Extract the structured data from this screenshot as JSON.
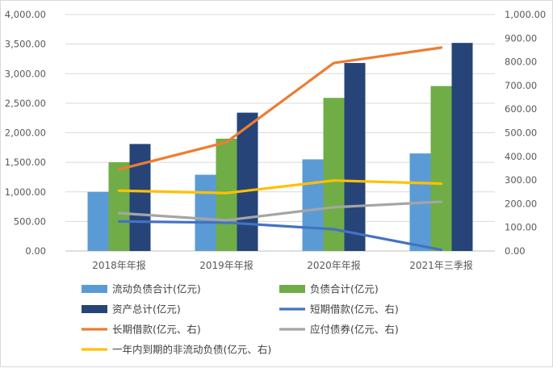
{
  "chart_data": {
    "type": "bar",
    "title": "",
    "categories": [
      "2018年年报",
      "2019年年报",
      "2020年年报",
      "2021年三季报"
    ],
    "y_left": {
      "ylim": [
        0,
        4000
      ],
      "ticks": [
        "0.00",
        "500.00",
        "1,000.00",
        "1,500.00",
        "2,000.00",
        "2,500.00",
        "3,000.00",
        "3,500.00",
        "4,000.00"
      ]
    },
    "y_right": {
      "ylim": [
        0,
        1000
      ],
      "ticks": [
        "0.00",
        "100.00",
        "200.00",
        "300.00",
        "400.00",
        "500.00",
        "600.00",
        "700.00",
        "800.00",
        "900.00",
        "1,000.00"
      ]
    },
    "grid": true,
    "legend_position": "bottom",
    "series": [
      {
        "name": "流动负债合计(亿元)",
        "kind": "bar",
        "axis": "left",
        "color": "#5b9bd5",
        "values": [
          1000,
          1290,
          1550,
          1650
        ]
      },
      {
        "name": "负债合计(亿元)",
        "kind": "bar",
        "axis": "left",
        "color": "#70ad47",
        "values": [
          1500,
          1900,
          2590,
          2790
        ]
      },
      {
        "name": "资产总计(亿元)",
        "kind": "bar",
        "axis": "left",
        "color": "#264478",
        "values": [
          1810,
          2340,
          3180,
          3520
        ]
      },
      {
        "name": "短期借款(亿元、右)",
        "kind": "line",
        "axis": "right",
        "color": "#4472c4",
        "values": [
          125,
          120,
          92,
          5
        ]
      },
      {
        "name": "长期借款(亿元、右)",
        "kind": "line",
        "axis": "right",
        "color": "#ed7d31",
        "values": [
          345,
          460,
          795,
          860
        ]
      },
      {
        "name": "应付债券(亿元、右)",
        "kind": "line",
        "axis": "right",
        "color": "#a5a5a5",
        "values": [
          160,
          130,
          185,
          208
        ]
      },
      {
        "name": "一年内到期的非流动负债(亿元、右)",
        "kind": "line",
        "axis": "right",
        "color": "#ffc000",
        "values": [
          255,
          245,
          298,
          285
        ]
      }
    ]
  }
}
